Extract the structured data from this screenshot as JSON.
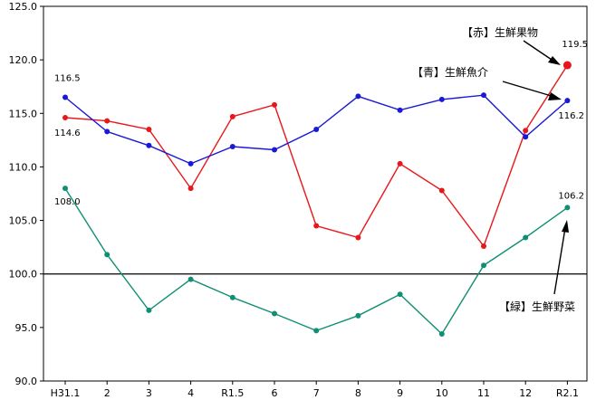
{
  "chart_data": {
    "type": "line",
    "categories": [
      "H31.1",
      "2",
      "3",
      "4",
      "R1.5",
      "6",
      "7",
      "8",
      "9",
      "10",
      "11",
      "12",
      "R2.1"
    ],
    "ylim": [
      90.0,
      125.0
    ],
    "yticks": [
      "90.0",
      "95.0",
      "100.0",
      "105.0",
      "110.0",
      "115.0",
      "120.0",
      "125.0"
    ],
    "reference_line": 100.0,
    "grid": false,
    "series": [
      {
        "name": "【赤】生鮮果物",
        "color": "#e8171b",
        "values": [
          114.6,
          114.3,
          113.5,
          108.0,
          114.7,
          115.8,
          104.5,
          103.4,
          110.3,
          107.8,
          102.6,
          113.4,
          119.5
        ]
      },
      {
        "name": "【青】生鮮魚介",
        "color": "#1a1ad6",
        "values": [
          116.5,
          113.3,
          112.0,
          110.3,
          111.9,
          111.6,
          113.5,
          116.6,
          115.3,
          116.3,
          116.7,
          112.8,
          116.2
        ]
      },
      {
        "name": "【緑】生鮮野菜",
        "color": "#0f8f73",
        "values": [
          108.0,
          101.8,
          96.6,
          99.5,
          97.8,
          96.3,
          94.7,
          96.1,
          98.1,
          94.4,
          100.8,
          103.4,
          106.2
        ]
      }
    ],
    "data_labels": [
      {
        "series": 1,
        "index": 0,
        "text": "116.5"
      },
      {
        "series": 0,
        "index": 0,
        "text": "114.6"
      },
      {
        "series": 2,
        "index": 0,
        "text": "108.0"
      },
      {
        "series": 0,
        "index": 12,
        "text": "119.5"
      },
      {
        "series": 1,
        "index": 12,
        "text": "116.2"
      },
      {
        "series": 2,
        "index": 12,
        "text": "106.2"
      }
    ]
  }
}
